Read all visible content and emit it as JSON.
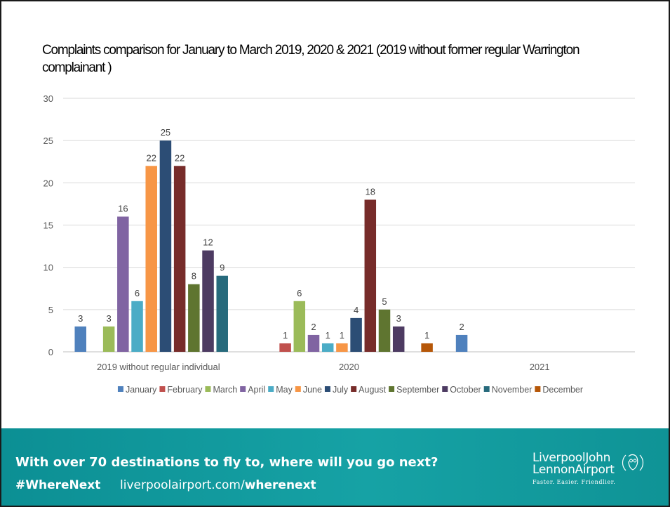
{
  "chart_data": {
    "type": "bar",
    "title": "Complaints comparison for January to March 2019, 2020 & 2021 (2019 without former regular Warrington complainant )",
    "categories": [
      "2019 without regular individual",
      "2020",
      "2021"
    ],
    "ylim": [
      0,
      30
    ],
    "yticks": [
      0,
      5,
      10,
      15,
      20,
      25,
      30
    ],
    "grid": true,
    "legend_position": "bottom",
    "series": [
      {
        "name": "January",
        "color": "#4f81bd",
        "values": [
          3,
          null,
          2
        ]
      },
      {
        "name": "February",
        "color": "#c0504d",
        "values": [
          null,
          1,
          null
        ]
      },
      {
        "name": "March",
        "color": "#9bbb59",
        "values": [
          3,
          6,
          null
        ]
      },
      {
        "name": "April",
        "color": "#8064a2",
        "values": [
          16,
          2,
          null
        ]
      },
      {
        "name": "May",
        "color": "#4bacc6",
        "values": [
          6,
          1,
          null
        ]
      },
      {
        "name": "June",
        "color": "#f79646",
        "values": [
          22,
          1,
          null
        ]
      },
      {
        "name": "July",
        "color": "#2c4d75",
        "values": [
          25,
          4,
          null
        ]
      },
      {
        "name": "August",
        "color": "#772c2a",
        "values": [
          22,
          18,
          null
        ]
      },
      {
        "name": "September",
        "color": "#5f7530",
        "values": [
          8,
          5,
          null
        ]
      },
      {
        "name": "October",
        "color": "#4d3b62",
        "values": [
          12,
          3,
          null
        ]
      },
      {
        "name": "November",
        "color": "#276a7c",
        "values": [
          9,
          null,
          null
        ]
      },
      {
        "name": "December",
        "color": "#b65708",
        "values": [
          null,
          1,
          null
        ]
      }
    ]
  },
  "footer": {
    "tagline": "With over 70 destinations to fly to, where will you go next?",
    "hashtag": "#WhereNext",
    "url_base": "liverpoolairport.com/",
    "url_bold": "wherenext",
    "logo_line1": "LiverpoolJohn",
    "logo_line2": "LennonAirport",
    "logo_line3": "Faster. Easier. Friendlier.",
    "logo_icon": "lennon-face-icon"
  }
}
